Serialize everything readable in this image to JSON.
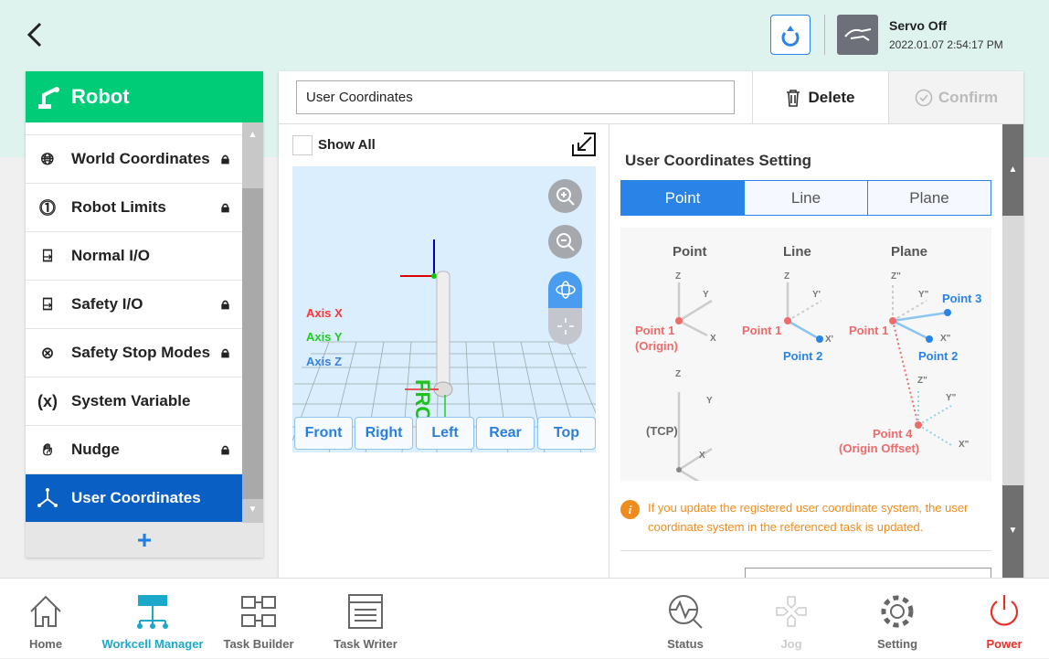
{
  "header": {
    "servo_status": "Servo Off",
    "datetime": "2022.01.07 2:54:17 PM",
    "icons": [
      "back-arrow-icon",
      "refresh-icon",
      "servo-hand-icon"
    ]
  },
  "sidebar": {
    "title": "Robot",
    "items": [
      {
        "label": "World Coordinates",
        "icon": "globe-icon",
        "locked": true
      },
      {
        "label": "Robot Limits",
        "icon": "limit-icon",
        "locked": true
      },
      {
        "label": "Normal I/O",
        "icon": "io-icon",
        "locked": false
      },
      {
        "label": "Safety I/O",
        "icon": "io-icon",
        "locked": true
      },
      {
        "label": "Safety Stop Modes",
        "icon": "stop-icon",
        "locked": true
      },
      {
        "label": "System Variable",
        "icon": "variable-icon",
        "glyph": "(x)",
        "locked": false
      },
      {
        "label": "Nudge",
        "icon": "hand-icon",
        "locked": true
      },
      {
        "label": "User Coordinates",
        "icon": "axes-icon",
        "locked": false,
        "selected": true
      }
    ],
    "add_label": "+"
  },
  "main": {
    "name_value": "User Coordinates",
    "delete_label": "Delete",
    "confirm_label": "Confirm",
    "show_all": "Show All",
    "show_all_checked": false,
    "viewer": {
      "axis_x": "Axis X",
      "axis_y": "Axis Y",
      "axis_z": "Axis Z",
      "front_text": "FRONT",
      "views": [
        "Front",
        "Right",
        "Left",
        "Rear",
        "Top"
      ],
      "mode": "rotate"
    },
    "setting_title": "User Coordinates Setting",
    "tabs": [
      {
        "label": "Point",
        "active": true
      },
      {
        "label": "Line",
        "active": false
      },
      {
        "label": "Plane",
        "active": false
      }
    ],
    "diagram": {
      "point": "Point",
      "line": "Line",
      "plane": "Plane",
      "p1": "Point 1",
      "origin": "(Origin)",
      "p2": "Point 2",
      "p3": "Point 3",
      "p4": "Point 4",
      "origin_offset": "(Origin Offset)",
      "tcp": "(TCP)",
      "x": "X",
      "y": "Y",
      "z": "Z",
      "x1": "X'",
      "y1": "Y'",
      "x2": "X\"",
      "y2": "Y\"",
      "z2": "Z\""
    },
    "info": "If you update the registered user coordinate system, the user coordinate system in the referenced task is updated."
  },
  "nav": [
    {
      "label": "Home",
      "active": false
    },
    {
      "label": "Workcell Manager",
      "active": true
    },
    {
      "label": "Task Builder",
      "active": false
    },
    {
      "label": "Task Writer",
      "active": false
    },
    {
      "label": "Status",
      "active": false
    },
    {
      "label": "Jog",
      "active": false,
      "disabled": true
    },
    {
      "label": "Setting",
      "active": false
    },
    {
      "label": "Power",
      "active": false,
      "color": "#e8302a"
    }
  ],
  "colors": {
    "accent": "#2a84e8",
    "green": "#00cc77",
    "selected": "#0a5fc4",
    "warning": "#f08c1e",
    "point_red": "#ee6b6b"
  }
}
